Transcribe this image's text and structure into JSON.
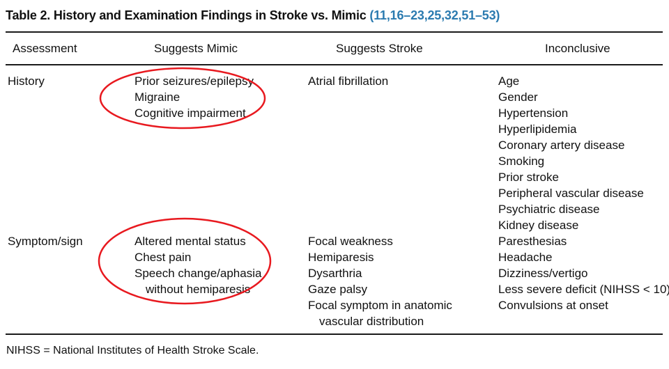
{
  "table": {
    "caption_label": "Table 2.",
    "caption_title": "History and Examination Findings in Stroke vs. Mimic",
    "caption_refs": "(11,16–23,25,32,51–53)",
    "headers": [
      "Assessment",
      "Suggests Mimic",
      "Suggests Stroke",
      "Inconclusive"
    ],
    "rows": [
      {
        "assessment": "History",
        "mimic": [
          "Prior seizures/epilepsy",
          "Migraine",
          "Cognitive impairment"
        ],
        "stroke": [
          "Atrial fibrillation"
        ],
        "inconclusive": [
          "Age",
          "Gender",
          "Hypertension",
          "Hyperlipidemia",
          "Coronary artery disease",
          "Smoking",
          "Prior stroke",
          "Peripheral vascular disease",
          "Psychiatric disease",
          "Kidney disease"
        ]
      },
      {
        "assessment": "Symptom/sign",
        "mimic": [
          "Altered mental status",
          "Chest pain",
          "Speech change/aphasia",
          "without hemiparesis"
        ],
        "stroke": [
          "Focal weakness",
          "Hemiparesis",
          "Dysarthria",
          "Gaze palsy",
          "Focal symptom in anatomic",
          "vascular distribution"
        ],
        "inconclusive": [
          "Paresthesias",
          "Headache",
          "Dizziness/vertigo",
          "Less severe deficit (NIHSS < 10)",
          "Convulsions at onset"
        ]
      }
    ],
    "footnote": "NIHSS = National Institutes of Health Stroke Scale."
  },
  "annotation_color": "#e8191f"
}
